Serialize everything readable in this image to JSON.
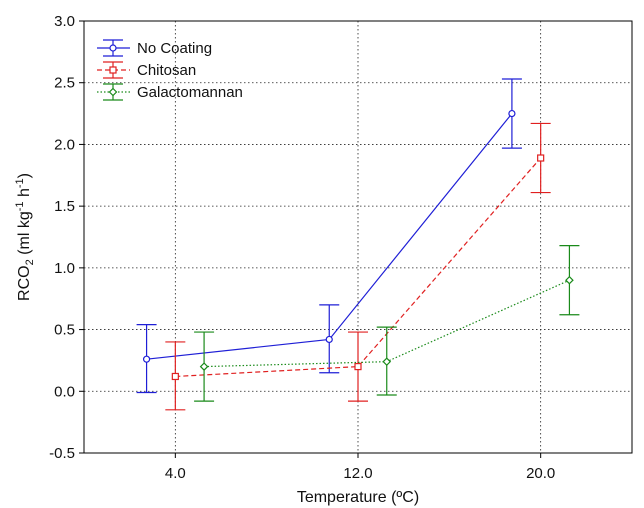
{
  "chart_data": {
    "type": "line",
    "xlabel": "Temperature (ºC)",
    "ylabel_parts": [
      "RCO",
      "2",
      " (ml kg",
      "-1",
      " h",
      "-1",
      ")"
    ],
    "categories": [
      "4.0",
      "12.0",
      "20.0"
    ],
    "ylim": [
      -0.5,
      3.0
    ],
    "yticks": [
      "3.0",
      "2.5",
      "2.0",
      "1.5",
      "1.0",
      "0.5",
      "0.0",
      "-0.5"
    ],
    "ytick_values": [
      3.0,
      2.5,
      2.0,
      1.5,
      1.0,
      0.5,
      0.0,
      -0.5
    ],
    "grid": true,
    "legend_position": "top-left",
    "series": [
      {
        "name": "No Coating",
        "color": "#1f1fd6",
        "line_style": "solid",
        "marker": "circle",
        "x_offset": -1.25,
        "values": [
          0.26,
          0.42,
          2.25
        ],
        "err_low": [
          -0.01,
          0.15,
          1.97
        ],
        "err_high": [
          0.54,
          0.7,
          2.53
        ]
      },
      {
        "name": "Chitosan",
        "color": "#e02020",
        "line_style": "dashed",
        "marker": "square",
        "x_offset": 0,
        "values": [
          0.12,
          0.2,
          1.89
        ],
        "err_low": [
          -0.15,
          -0.08,
          1.61
        ],
        "err_high": [
          0.4,
          0.48,
          2.17
        ]
      },
      {
        "name": "Galactomannan",
        "color": "#1a8a1a",
        "line_style": "dotted",
        "marker": "diamond",
        "x_offset": 1.25,
        "values": [
          0.2,
          0.24,
          0.9
        ],
        "err_low": [
          -0.08,
          -0.03,
          0.62
        ],
        "err_high": [
          0.48,
          0.52,
          1.18
        ]
      }
    ]
  }
}
